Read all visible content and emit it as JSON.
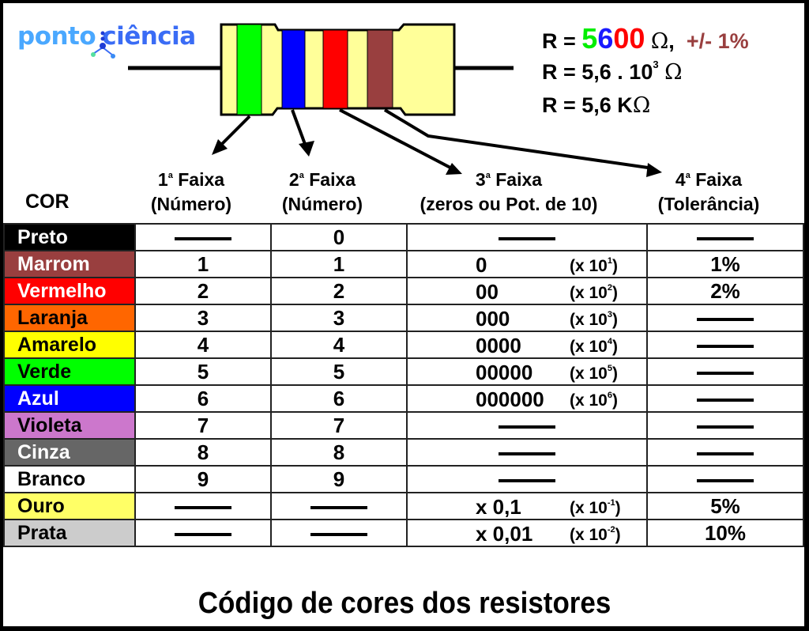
{
  "logo": {
    "part1": "ponto",
    "part2": "ciência"
  },
  "resistor": {
    "bands": [
      {
        "name": "green",
        "color": "#00ff00"
      },
      {
        "name": "blue",
        "color": "#0000ff"
      },
      {
        "name": "red",
        "color": "#ff0000"
      },
      {
        "name": "brown",
        "color": "#993f3f"
      }
    ],
    "body_color": "#ffff99"
  },
  "formulas": {
    "line1": {
      "prefix": "R = ",
      "d1": "5",
      "d2": "6",
      "d3": "00",
      "omega": "Ω",
      "comma": ",",
      "tolerance": "+/- 1%"
    },
    "line2": {
      "prefix": "R = 5,6 . 10",
      "exp": "3",
      "omega": "Ω"
    },
    "line3": {
      "prefix": "R = 5,6 K",
      "omega": "Ω"
    }
  },
  "headers": {
    "cor": "COR",
    "band1": {
      "num": "1",
      "ord": "a",
      "title": " Faixa",
      "sub": "(Número)"
    },
    "band2": {
      "num": "2",
      "ord": "a",
      "title": " Faixa",
      "sub": "(Número)"
    },
    "band3": {
      "num": "3",
      "ord": "a",
      "title": " Faixa",
      "sub": "(zeros ou Pot. de 10)"
    },
    "band4": {
      "num": "4",
      "ord": "a",
      "title": " Faixa",
      "sub": "(Tolerância)"
    }
  },
  "rows": [
    {
      "color": "Preto",
      "bg": "#000000",
      "fg": "#ffffff",
      "b1": "—",
      "b2": "0",
      "zeros": "—",
      "pow_exp": "",
      "tol": "—"
    },
    {
      "color": "Marrom",
      "bg": "#993f3f",
      "fg": "#ffffff",
      "b1": "1",
      "b2": "1",
      "zeros": "0",
      "pow_exp": "1",
      "tol": "1%"
    },
    {
      "color": "Vermelho",
      "bg": "#ff0000",
      "fg": "#ffffff",
      "b1": "2",
      "b2": "2",
      "zeros": "00",
      "pow_exp": "2",
      "tol": "2%"
    },
    {
      "color": "Laranja",
      "bg": "#ff6600",
      "fg": "#000000",
      "b1": "3",
      "b2": "3",
      "zeros": "000",
      "pow_exp": "3",
      "tol": "—"
    },
    {
      "color": "Amarelo",
      "bg": "#ffff00",
      "fg": "#000000",
      "b1": "4",
      "b2": "4",
      "zeros": "0000",
      "pow_exp": "4",
      "tol": "—"
    },
    {
      "color": "Verde",
      "bg": "#00ff00",
      "fg": "#000000",
      "b1": "5",
      "b2": "5",
      "zeros": "00000",
      "pow_exp": "5",
      "tol": "—"
    },
    {
      "color": "Azul",
      "bg": "#0000ff",
      "fg": "#ffffff",
      "b1": "6",
      "b2": "6",
      "zeros": "000000",
      "pow_exp": "6",
      "tol": "—"
    },
    {
      "color": "Violeta",
      "bg": "#cc77cc",
      "fg": "#000000",
      "b1": "7",
      "b2": "7",
      "zeros": "—",
      "pow_exp": "",
      "tol": "—"
    },
    {
      "color": "Cinza",
      "bg": "#666666",
      "fg": "#ffffff",
      "b1": "8",
      "b2": "8",
      "zeros": "—",
      "pow_exp": "",
      "tol": "—"
    },
    {
      "color": "Branco",
      "bg": "#ffffff",
      "fg": "#000000",
      "b1": "9",
      "b2": "9",
      "zeros": "—",
      "pow_exp": "",
      "tol": "—"
    },
    {
      "color": "Ouro",
      "bg": "#ffff66",
      "fg": "#000000",
      "b1": "—",
      "b2": "—",
      "zeros": "x 0,1",
      "pow_exp": "-1",
      "tol": "5%"
    },
    {
      "color": "Prata",
      "bg": "#cccccc",
      "fg": "#000000",
      "b1": "—",
      "b2": "—",
      "zeros": "x 0,01",
      "pow_exp": "-2",
      "tol": "10%"
    }
  ],
  "pow_prefix": "(x 10",
  "pow_suffix": ")",
  "footer_title": "Código de cores dos resistores"
}
